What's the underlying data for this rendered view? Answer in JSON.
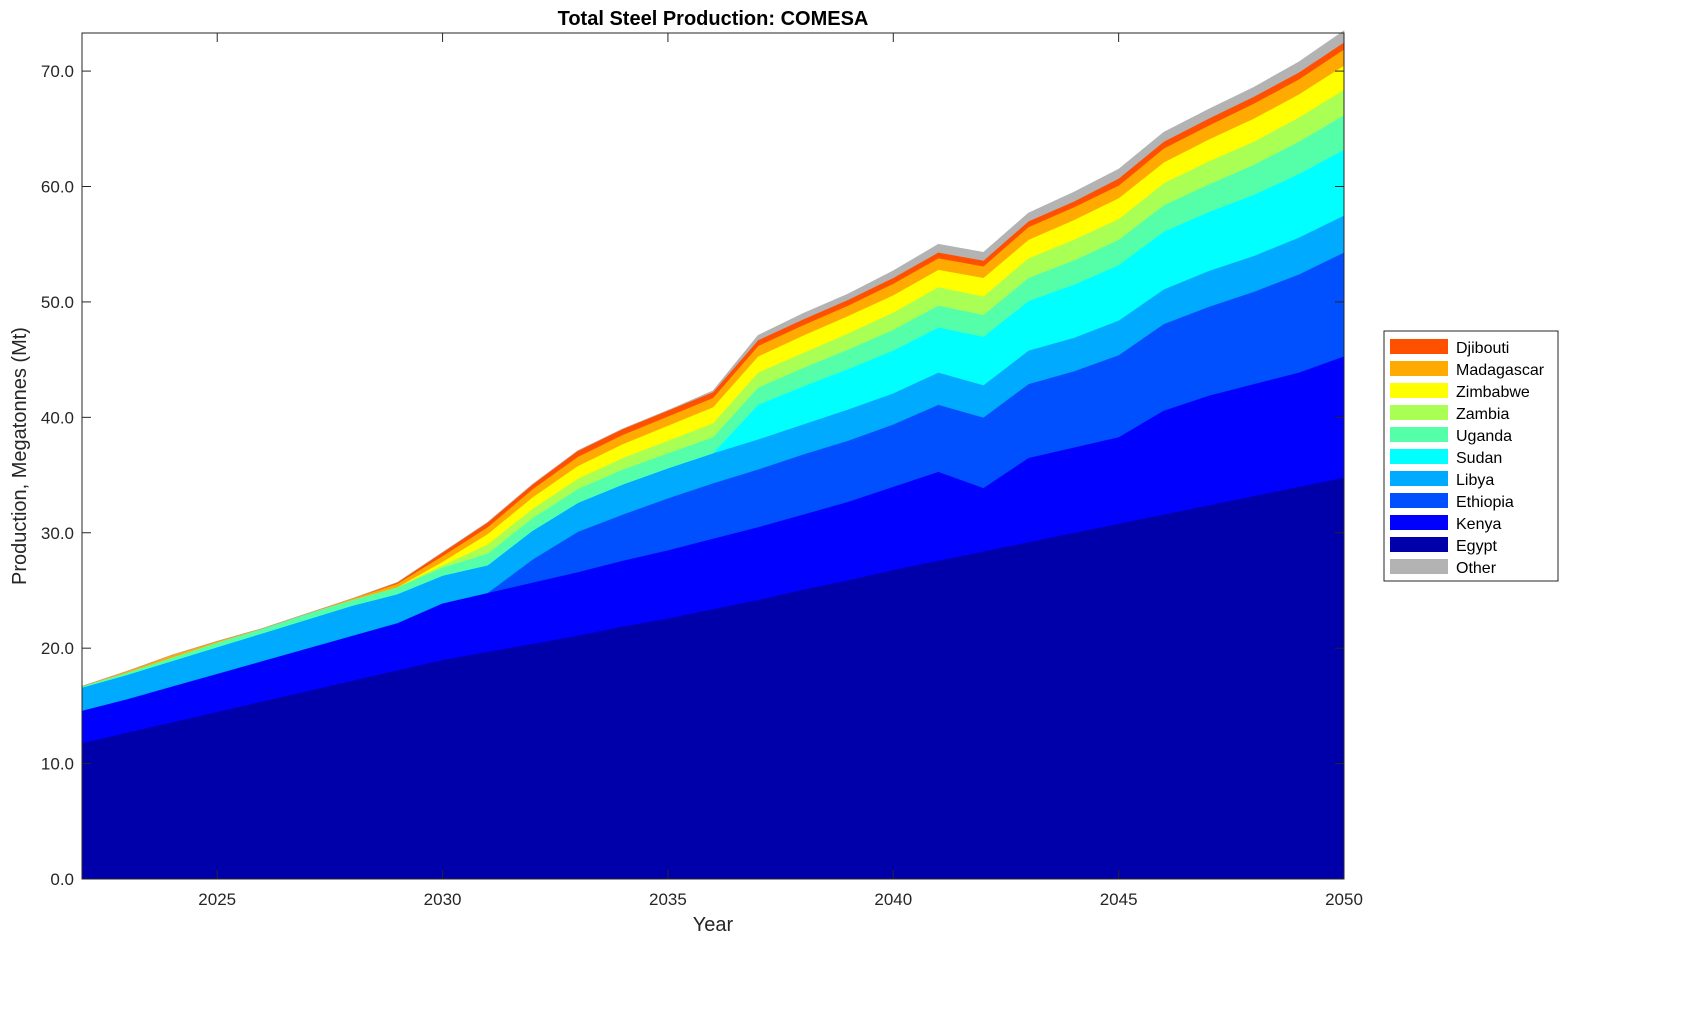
{
  "chart_data": {
    "type": "area",
    "stacked": true,
    "title": "Total Steel Production: COMESA",
    "xlabel": "Year",
    "ylabel": "Production, Megatonnes (Mt)",
    "xlim": [
      2022,
      2050
    ],
    "ylim": [
      0,
      73.3
    ],
    "xticks": [
      2025,
      2030,
      2035,
      2040,
      2045,
      2050
    ],
    "yticks": [
      0,
      10,
      20,
      30,
      40,
      50,
      60,
      70
    ],
    "ytick_labels": [
      "0.0",
      "10.0",
      "20.0",
      "30.0",
      "40.0",
      "50.0",
      "60.0",
      "70.0"
    ],
    "grid": false,
    "legend_position": "right",
    "x": [
      2022,
      2023,
      2024,
      2025,
      2026,
      2027,
      2028,
      2029,
      2030,
      2031,
      2032,
      2033,
      2034,
      2035,
      2036,
      2037,
      2038,
      2039,
      2040,
      2041,
      2042,
      2043,
      2044,
      2045,
      2046,
      2047,
      2048,
      2049,
      2050
    ],
    "series": [
      {
        "name": "Egypt",
        "color": "#0000AA",
        "values": [
          11.8,
          12.7,
          13.6,
          14.5,
          15.4,
          16.3,
          17.2,
          18.1,
          19.0,
          19.7,
          20.4,
          21.1,
          21.9,
          22.6,
          23.4,
          24.2,
          25.1,
          25.9,
          26.8,
          27.6,
          28.4,
          29.2,
          30.0,
          30.8,
          31.6,
          32.4,
          33.2,
          34.0,
          34.8
        ]
      },
      {
        "name": "Kenya",
        "color": "#0000FF",
        "values": [
          2.8,
          2.9,
          3.1,
          3.3,
          3.5,
          3.7,
          3.9,
          4.1,
          4.9,
          5.1,
          5.3,
          5.5,
          5.7,
          5.9,
          6.1,
          6.3,
          6.5,
          6.8,
          7.2,
          7.7,
          5.5,
          7.3,
          7.4,
          7.5,
          9.0,
          9.5,
          9.7,
          9.9,
          10.5
        ]
      },
      {
        "name": "Ethiopia",
        "color": "#0050FF",
        "values": [
          0,
          0,
          0,
          0,
          0,
          0,
          0,
          0,
          0,
          0,
          2.0,
          3.5,
          4.0,
          4.5,
          4.8,
          5.0,
          5.2,
          5.3,
          5.4,
          5.8,
          6.1,
          6.4,
          6.6,
          7.1,
          7.5,
          7.7,
          8.0,
          8.5,
          9.0
        ]
      },
      {
        "name": "Libya",
        "color": "#00AAFF",
        "values": [
          2.0,
          2.1,
          2.2,
          2.3,
          2.4,
          2.5,
          2.6,
          2.5,
          2.4,
          2.4,
          2.5,
          2.5,
          2.6,
          2.6,
          2.6,
          2.6,
          2.6,
          2.7,
          2.7,
          2.8,
          2.8,
          2.9,
          2.9,
          3.0,
          3.0,
          3.1,
          3.1,
          3.2,
          3.2
        ]
      },
      {
        "name": "Sudan",
        "color": "#00FFFF",
        "values": [
          0,
          0,
          0,
          0,
          0,
          0,
          0,
          0,
          0,
          0,
          0,
          0,
          0,
          0,
          0,
          3.0,
          3.3,
          3.5,
          3.7,
          3.9,
          4.2,
          4.3,
          4.6,
          4.8,
          5.0,
          5.1,
          5.3,
          5.5,
          5.7
        ]
      },
      {
        "name": "Uganda",
        "color": "#55FFAA",
        "values": [
          0.1,
          0.2,
          0.3,
          0.4,
          0.4,
          0.5,
          0.5,
          0.6,
          0.7,
          1.0,
          1.1,
          1.2,
          1.3,
          1.3,
          1.4,
          1.5,
          1.6,
          1.7,
          1.8,
          1.9,
          1.9,
          2.0,
          2.1,
          2.2,
          2.3,
          2.4,
          2.6,
          2.8,
          3.0
        ]
      },
      {
        "name": "Zambia",
        "color": "#AAFF55",
        "values": [
          0,
          0,
          0,
          0,
          0,
          0,
          0,
          0,
          0.2,
          0.8,
          0.8,
          0.9,
          1.0,
          1.1,
          1.2,
          1.3,
          1.3,
          1.4,
          1.5,
          1.6,
          1.6,
          1.7,
          1.8,
          1.8,
          1.9,
          2.0,
          2.0,
          2.1,
          2.2
        ]
      },
      {
        "name": "Zimbabwe",
        "color": "#FFFF00",
        "values": [
          0,
          0,
          0,
          0,
          0,
          0,
          0,
          0,
          0.3,
          0.9,
          1.0,
          1.1,
          1.2,
          1.3,
          1.4,
          1.4,
          1.5,
          1.5,
          1.5,
          1.5,
          1.6,
          1.6,
          1.7,
          1.8,
          1.8,
          1.9,
          2.0,
          2.0,
          2.1
        ]
      },
      {
        "name": "Madagascar",
        "color": "#FFAA00",
        "values": [
          0,
          0.1,
          0.2,
          0.1,
          0,
          0,
          0.1,
          0.3,
          0.5,
          0.6,
          0.7,
          0.8,
          0.8,
          0.8,
          0.8,
          0.9,
          0.9,
          0.9,
          1.0,
          1.0,
          1.0,
          1.1,
          1.1,
          1.1,
          1.2,
          1.2,
          1.3,
          1.3,
          1.4
        ]
      },
      {
        "name": "Djibouti",
        "color": "#FF5000",
        "values": [
          0,
          0,
          0,
          0,
          0,
          0,
          0,
          0.1,
          0.3,
          0.4,
          0.4,
          0.5,
          0.5,
          0.5,
          0.5,
          0.5,
          0.5,
          0.5,
          0.5,
          0.5,
          0.5,
          0.5,
          0.5,
          0.6,
          0.6,
          0.6,
          0.6,
          0.6,
          0.6
        ]
      },
      {
        "name": "Other",
        "color": "#B3B3B3",
        "values": [
          0,
          0,
          0,
          0,
          0,
          0,
          0,
          0,
          0,
          0,
          0,
          0,
          0,
          0,
          0.1,
          0.4,
          0.5,
          0.5,
          0.6,
          0.7,
          0.7,
          0.7,
          0.8,
          0.8,
          0.8,
          0.8,
          0.8,
          0.9,
          1.0
        ]
      }
    ],
    "legend_order": [
      "Djibouti",
      "Madagascar",
      "Zimbabwe",
      "Zambia",
      "Uganda",
      "Sudan",
      "Libya",
      "Ethiopia",
      "Kenya",
      "Egypt",
      "Other"
    ]
  }
}
